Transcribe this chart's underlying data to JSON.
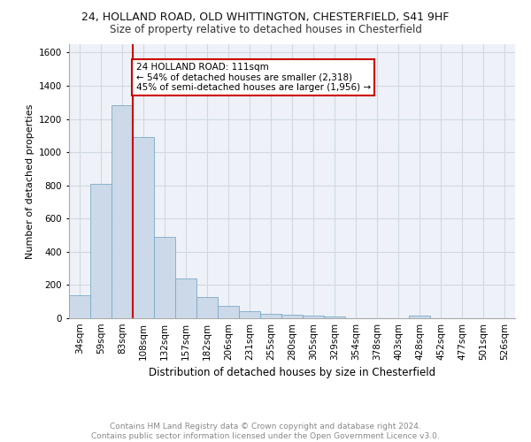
{
  "title1": "24, HOLLAND ROAD, OLD WHITTINGTON, CHESTERFIELD, S41 9HF",
  "title2": "Size of property relative to detached houses in Chesterfield",
  "xlabel": "Distribution of detached houses by size in Chesterfield",
  "ylabel": "Number of detached properties",
  "footnote": "Contains HM Land Registry data © Crown copyright and database right 2024.\nContains public sector information licensed under the Open Government Licence v3.0.",
  "categories": [
    "34sqm",
    "59sqm",
    "83sqm",
    "108sqm",
    "132sqm",
    "157sqm",
    "182sqm",
    "206sqm",
    "231sqm",
    "255sqm",
    "280sqm",
    "305sqm",
    "329sqm",
    "354sqm",
    "378sqm",
    "403sqm",
    "428sqm",
    "452sqm",
    "477sqm",
    "501sqm",
    "526sqm"
  ],
  "values": [
    140,
    810,
    1285,
    1090,
    490,
    238,
    130,
    75,
    43,
    28,
    20,
    18,
    8,
    2,
    0,
    0,
    18,
    0,
    0,
    0,
    0
  ],
  "bar_color": "#ccd9e8",
  "bar_edge_color": "#7aaac8",
  "vline_x": 2.5,
  "vline_color": "#cc0000",
  "annotation_text": "24 HOLLAND ROAD: 111sqm\n← 54% of detached houses are smaller (2,318)\n45% of semi-detached houses are larger (1,956) →",
  "annotation_box_facecolor": "#ffffff",
  "annotation_box_edgecolor": "#cc0000",
  "ylim": [
    0,
    1650
  ],
  "yticks": [
    0,
    200,
    400,
    600,
    800,
    1000,
    1200,
    1400,
    1600
  ],
  "grid_color": "#d0d8e0",
  "background_color": "#eef2f8",
  "title1_fontsize": 9,
  "title2_fontsize": 8.5,
  "xlabel_fontsize": 8.5,
  "ylabel_fontsize": 8,
  "footnote_fontsize": 6.5,
  "tick_fontsize": 7.5
}
